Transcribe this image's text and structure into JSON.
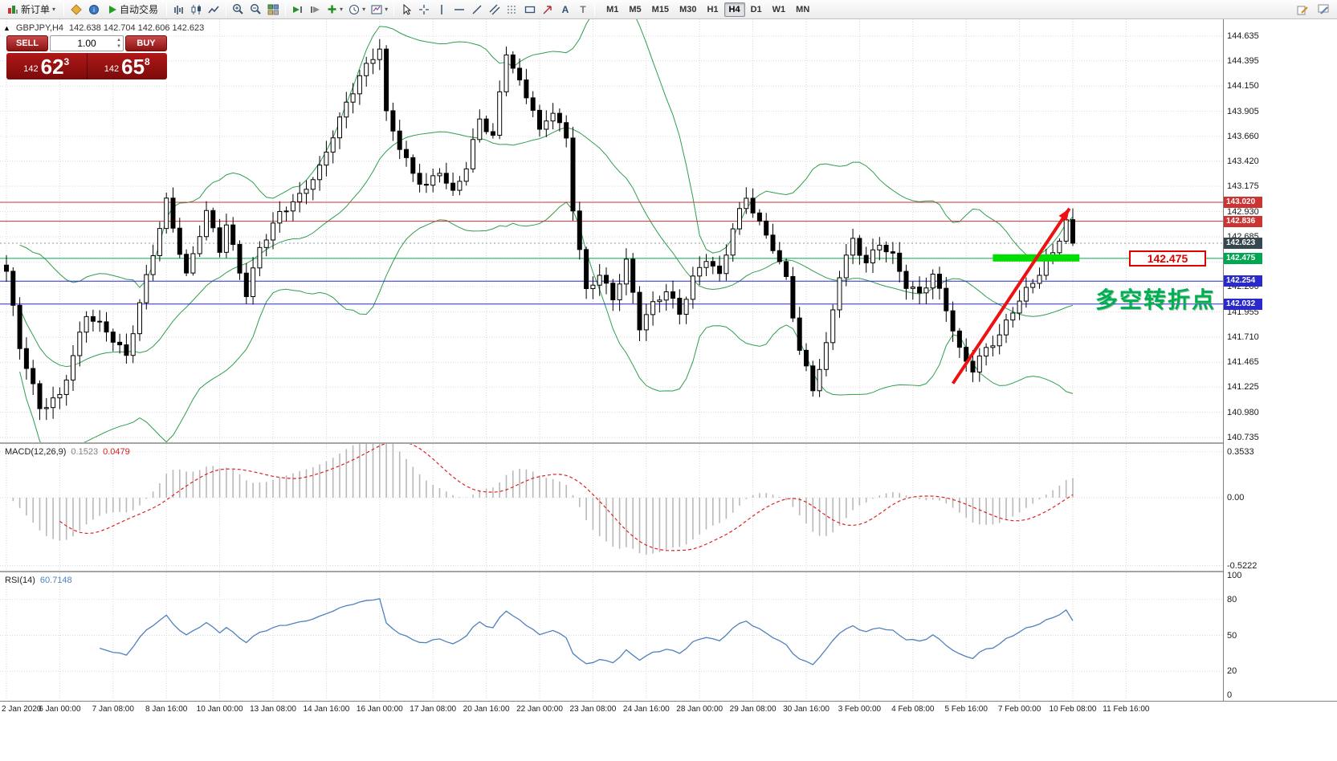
{
  "toolbar": {
    "new_order_label": "新订单",
    "autotrading_label": "自动交易",
    "timeframes": [
      "M1",
      "M5",
      "M15",
      "M30",
      "H1",
      "H4",
      "D1",
      "W1",
      "MN"
    ],
    "active_timeframe": "H4"
  },
  "symbol_header": {
    "expander": "▲",
    "symbol": "GBPJPY,H4",
    "ohlc": "142.638 142.704 142.606 142.623"
  },
  "trade_panel": {
    "sell_label": "SELL",
    "buy_label": "BUY",
    "volume": "1.00",
    "sell_price": {
      "small": "142",
      "big": "62",
      "sup": "3"
    },
    "buy_price": {
      "small": "142",
      "big": "65",
      "sup": "8"
    }
  },
  "annotations": {
    "turning_point_text": "多空转折点",
    "price_tag": "142.475"
  },
  "indicators": {
    "macd_name": "MACD(12,26,9)",
    "macd_v1": "0.1523",
    "macd_v2": "0.0479",
    "rsi_name": "RSI(14)",
    "rsi_value": "60.7148"
  },
  "chart_data": {
    "type": "candlestick",
    "symbol": "GBPJPY",
    "timeframe": "H4",
    "ohlc_header": {
      "open": "142.638",
      "high": "142.704",
      "low": "142.606",
      "close": "142.623"
    },
    "bid": "142.623",
    "ask": "142.658",
    "price_ticks": [
      "144.635",
      "144.395",
      "144.150",
      "143.905",
      "143.660",
      "143.420",
      "143.175",
      "142.930",
      "142.685",
      "142.440",
      "142.200",
      "141.955",
      "141.710",
      "141.465",
      "141.225",
      "140.980",
      "140.735"
    ],
    "time_ticks": [
      "2 Jan 2020",
      "6 Jan 00:00",
      "7 Jan 08:00",
      "8 Jan 16:00",
      "10 Jan 00:00",
      "13 Jan 08:00",
      "14 Jan 16:00",
      "16 Jan 00:00",
      "17 Jan 08:00",
      "20 Jan 16:00",
      "22 Jan 00:00",
      "23 Jan 08:00",
      "24 Jan 16:00",
      "28 Jan 00:00",
      "29 Jan 08:00",
      "30 Jan 16:00",
      "3 Feb 00:00",
      "4 Feb 08:00",
      "5 Feb 16:00",
      "7 Feb 00:00",
      "10 Feb 08:00",
      "11 Feb 16:00"
    ],
    "num_candles": 161,
    "close_pivots": [
      [
        0,
        142.35
      ],
      [
        2,
        141.6
      ],
      [
        5,
        141.0
      ],
      [
        8,
        141.15
      ],
      [
        12,
        141.95
      ],
      [
        15,
        141.75
      ],
      [
        18,
        141.5
      ],
      [
        21,
        142.3
      ],
      [
        24,
        143.05
      ],
      [
        27,
        142.3
      ],
      [
        30,
        142.9
      ],
      [
        32,
        142.55
      ],
      [
        33,
        142.8
      ],
      [
        36,
        142.15
      ],
      [
        38,
        142.6
      ],
      [
        41,
        142.9
      ],
      [
        44,
        143.05
      ],
      [
        47,
        143.35
      ],
      [
        49,
        143.7
      ],
      [
        51,
        144.0
      ],
      [
        53,
        144.25
      ],
      [
        56,
        144.5
      ],
      [
        57,
        143.85
      ],
      [
        59,
        143.55
      ],
      [
        61,
        143.3
      ],
      [
        63,
        143.2
      ],
      [
        65,
        143.35
      ],
      [
        67,
        143.1
      ],
      [
        69,
        143.35
      ],
      [
        71,
        143.8
      ],
      [
        73,
        143.65
      ],
      [
        75,
        144.5
      ],
      [
        77,
        144.2
      ],
      [
        79,
        143.95
      ],
      [
        80,
        143.7
      ],
      [
        82,
        143.9
      ],
      [
        84,
        143.6
      ],
      [
        85,
        142.95
      ],
      [
        87,
        142.15
      ],
      [
        89,
        142.35
      ],
      [
        91,
        142.1
      ],
      [
        93,
        142.45
      ],
      [
        95,
        141.8
      ],
      [
        97,
        142.0
      ],
      [
        99,
        142.15
      ],
      [
        101,
        141.95
      ],
      [
        103,
        142.3
      ],
      [
        105,
        142.5
      ],
      [
        107,
        142.3
      ],
      [
        109,
        142.75
      ],
      [
        111,
        143.05
      ],
      [
        113,
        142.8
      ],
      [
        115,
        142.6
      ],
      [
        117,
        142.3
      ],
      [
        119,
        141.6
      ],
      [
        121,
        141.2
      ],
      [
        123,
        141.6
      ],
      [
        125,
        142.3
      ],
      [
        127,
        142.65
      ],
      [
        129,
        142.45
      ],
      [
        131,
        142.65
      ],
      [
        133,
        142.5
      ],
      [
        135,
        142.2
      ],
      [
        137,
        142.1
      ],
      [
        139,
        142.3
      ],
      [
        141,
        142.0
      ],
      [
        143,
        141.6
      ],
      [
        145,
        141.42
      ],
      [
        147,
        141.6
      ],
      [
        149,
        141.7
      ],
      [
        151,
        141.95
      ],
      [
        153,
        142.15
      ],
      [
        155,
        142.35
      ],
      [
        157,
        142.55
      ],
      [
        159,
        142.85
      ],
      [
        160,
        142.623
      ]
    ],
    "bollinger": {
      "period": 20,
      "deviation": 2,
      "color": "#2f9e4f"
    },
    "hlines": [
      {
        "price": 143.02,
        "label": "143.020",
        "color": "#cc3333",
        "style": "solid"
      },
      {
        "price": 142.836,
        "label": "142.836",
        "color": "#cc3333",
        "style": "solid"
      },
      {
        "price": 142.623,
        "label": "142.623",
        "color": "#8899aa",
        "style": "dotted",
        "badge": "#37474f"
      },
      {
        "price": 142.475,
        "label": "142.475",
        "color": "#00a651",
        "style": "solid",
        "badge": "#00a651"
      },
      {
        "price": 142.254,
        "label": "142.254",
        "color": "#2929cc",
        "style": "solid"
      },
      {
        "price": 142.032,
        "label": "142.032",
        "color": "#2929cc",
        "style": "solid"
      }
    ],
    "support_zone": {
      "from_candle": 148,
      "to_candle": 161,
      "price": 142.48,
      "color": "#00dd00"
    },
    "trend_arrow": {
      "from": [
        142,
        141.26
      ],
      "to": [
        159.5,
        142.96
      ],
      "color": "#ee1111"
    },
    "macd": {
      "params": [
        12,
        26,
        9
      ],
      "current_values": [
        0.1523,
        0.0479
      ],
      "histogram_color": "#b9b9b9",
      "signal_color": "#dd2222",
      "scale_ticks": [
        {
          "t": "0.3533",
          "v": 0.3533
        },
        {
          "t": "0.00",
          "v": 0
        },
        {
          "t": "-0.5222",
          "v": -0.5222
        }
      ]
    },
    "rsi": {
      "period": 14,
      "current_value": 60.7148,
      "color": "#4f81bd",
      "levels": [
        80,
        50,
        20
      ],
      "scale_ticks": [
        {
          "t": "100",
          "v": 100
        },
        {
          "t": "80",
          "v": 80
        },
        {
          "t": "50",
          "v": 50
        },
        {
          "t": "20",
          "v": 20
        },
        {
          "t": "0",
          "v": 0
        }
      ]
    }
  }
}
